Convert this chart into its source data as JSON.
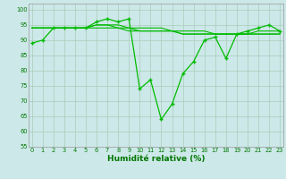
{
  "lines": [
    {
      "x": [
        0,
        1,
        2,
        3,
        4,
        5,
        6,
        7,
        8,
        9,
        10,
        11,
        12,
        13,
        14,
        15,
        16,
        17,
        18,
        19,
        20,
        21,
        22,
        23
      ],
      "y": [
        89,
        90,
        94,
        94,
        94,
        94,
        96,
        97,
        96,
        97,
        74,
        77,
        64,
        69,
        79,
        83,
        90,
        91,
        84,
        92,
        93,
        94,
        95,
        93
      ],
      "color": "#00bb00",
      "marker": "+",
      "markersize": 3.5,
      "linewidth": 0.9
    },
    {
      "x": [
        0,
        1,
        2,
        3,
        4,
        5,
        6,
        7,
        8,
        9,
        10,
        11,
        12,
        13,
        14,
        15,
        16,
        17,
        18,
        19,
        20,
        21,
        22,
        23
      ],
      "y": [
        94,
        94,
        94,
        94,
        94,
        94,
        94,
        94,
        94,
        93,
        93,
        93,
        93,
        93,
        92,
        92,
        92,
        92,
        92,
        92,
        92,
        92,
        92,
        92
      ],
      "color": "#00bb00",
      "marker": null,
      "linewidth": 0.8
    },
    {
      "x": [
        0,
        1,
        2,
        3,
        4,
        5,
        6,
        7,
        8,
        9,
        10,
        11,
        12,
        13,
        14,
        15,
        16,
        17,
        18,
        19,
        20,
        21,
        22,
        23
      ],
      "y": [
        94,
        94,
        94,
        94,
        94,
        94,
        95,
        95,
        94,
        94,
        93,
        93,
        93,
        93,
        92,
        92,
        92,
        92,
        92,
        92,
        92,
        92,
        92,
        92
      ],
      "color": "#00bb00",
      "marker": null,
      "linewidth": 0.8
    },
    {
      "x": [
        0,
        1,
        2,
        3,
        4,
        5,
        6,
        7,
        8,
        9,
        10,
        11,
        12,
        13,
        14,
        15,
        16,
        17,
        18,
        19,
        20,
        21,
        22,
        23
      ],
      "y": [
        94,
        94,
        94,
        94,
        94,
        94,
        95,
        95,
        95,
        94,
        94,
        94,
        94,
        93,
        93,
        93,
        93,
        92,
        92,
        92,
        92,
        93,
        93,
        93
      ],
      "color": "#00bb00",
      "marker": null,
      "linewidth": 0.8
    }
  ],
  "xlim": [
    -0.3,
    23.3
  ],
  "ylim": [
    55,
    102
  ],
  "yticks": [
    55,
    60,
    65,
    70,
    75,
    80,
    85,
    90,
    95,
    100
  ],
  "xticks": [
    0,
    1,
    2,
    3,
    4,
    5,
    6,
    7,
    8,
    9,
    10,
    11,
    12,
    13,
    14,
    15,
    16,
    17,
    18,
    19,
    20,
    21,
    22,
    23
  ],
  "xlabel": "Humidité relative (%)",
  "bg_color": "#cce8e8",
  "grid_color": "#aaccbb",
  "tick_color": "#007700",
  "label_color": "#007700",
  "tick_fontsize": 4.8,
  "xlabel_fontsize": 6.5
}
